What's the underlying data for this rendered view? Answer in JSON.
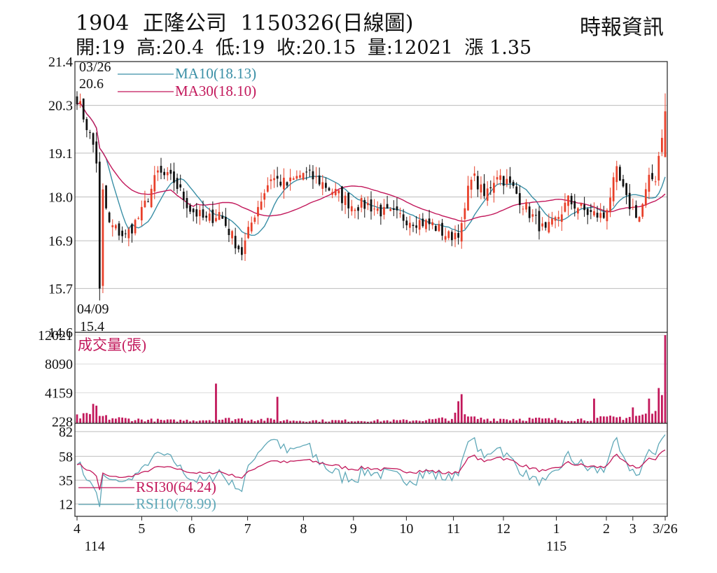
{
  "header": {
    "code": "1904",
    "name": "正隆公司",
    "date": "1150326(日線圖)",
    "source": "時報資訊",
    "open": "開:19",
    "high": "高:20.4",
    "low": "低:19",
    "close": "收:20.15",
    "volume": "量:12021",
    "change": "漲 1.35"
  },
  "chart_data": {
    "type": "candlestick",
    "price_panel": {
      "yticks": [
        "21.4",
        "20.3",
        "19.1",
        "18.0",
        "16.9",
        "15.7",
        "14.6"
      ],
      "ylim": [
        14.6,
        21.4
      ],
      "legend": [
        {
          "name": "MA10(18.13)",
          "color": "#3a8fa6"
        },
        {
          "name": "MA30(18.10)",
          "color": "#c2185b"
        }
      ],
      "annotations": {
        "high_date": "03/26",
        "high_value": "20.6",
        "low_date": "04/09",
        "low_value": "15.4"
      },
      "up_color": "#e8402a",
      "down_color": "#111111"
    },
    "volume_panel": {
      "label": "成交量(張)",
      "yticks": [
        "12021",
        "8090",
        "4159",
        "228"
      ],
      "ylim": [
        0,
        12021
      ],
      "color": "#c2185b"
    },
    "rsi_panel": {
      "yticks": [
        "82",
        "58",
        "35",
        "12"
      ],
      "ylim": [
        0,
        90
      ],
      "legend": [
        {
          "name": "RSI30(64.24)",
          "color": "#c2185b"
        },
        {
          "name": "RSI10(78.99)",
          "color": "#5fa8b8"
        }
      ]
    },
    "xticks": [
      {
        "label": "4",
        "pos": 0.0
      },
      {
        "label": "5",
        "pos": 0.11
      },
      {
        "label": "6",
        "pos": 0.195
      },
      {
        "label": "7",
        "pos": 0.29
      },
      {
        "label": "8",
        "pos": 0.385
      },
      {
        "label": "9",
        "pos": 0.47
      },
      {
        "label": "10",
        "pos": 0.56
      },
      {
        "label": "11",
        "pos": 0.64
      },
      {
        "label": "12",
        "pos": 0.725
      },
      {
        "label": "1",
        "pos": 0.815
      },
      {
        "label": "2",
        "pos": 0.9
      },
      {
        "label": "3",
        "pos": 0.945
      },
      {
        "label": "3/26",
        "pos": 1.0
      }
    ],
    "year_labels": [
      {
        "label": "114",
        "pos": 0.03
      },
      {
        "label": "115",
        "pos": 0.815
      }
    ],
    "anchors": [
      [
        0,
        20.5
      ],
      [
        5,
        19.3
      ],
      [
        10,
        17.3
      ],
      [
        15,
        17.0
      ],
      [
        20,
        17.6
      ],
      [
        25,
        18.6
      ],
      [
        30,
        18.4
      ],
      [
        35,
        17.7
      ],
      [
        40,
        17.4
      ],
      [
        44,
        17.6
      ],
      [
        48,
        17.0
      ],
      [
        51,
        16.6
      ],
      [
        55,
        17.6
      ],
      [
        60,
        18.5
      ],
      [
        65,
        18.3
      ],
      [
        70,
        18.6
      ],
      [
        75,
        18.4
      ],
      [
        80,
        18.1
      ],
      [
        85,
        17.8
      ],
      [
        90,
        17.8
      ],
      [
        95,
        17.6
      ],
      [
        100,
        17.5
      ],
      [
        105,
        17.4
      ],
      [
        110,
        17.3
      ],
      [
        115,
        17.0
      ],
      [
        119,
        17.2
      ],
      [
        122,
        18.6
      ],
      [
        126,
        18.0
      ],
      [
        130,
        18.6
      ],
      [
        135,
        18.2
      ],
      [
        140,
        17.6
      ],
      [
        145,
        17.1
      ],
      [
        148,
        17.4
      ],
      [
        152,
        17.9
      ],
      [
        158,
        17.6
      ],
      [
        163,
        17.5
      ],
      [
        167,
        18.6
      ],
      [
        170,
        17.9
      ],
      [
        174,
        17.5
      ],
      [
        177,
        18.4
      ],
      [
        179,
        18.5
      ],
      [
        182,
        20.15
      ]
    ],
    "volume_anchors": [
      [
        0,
        0.07
      ],
      [
        5,
        0.09
      ],
      [
        10,
        0.06
      ],
      [
        20,
        0.04
      ],
      [
        30,
        0.03
      ],
      [
        40,
        0.04
      ],
      [
        50,
        0.05
      ],
      [
        60,
        0.04
      ],
      [
        70,
        0.03
      ],
      [
        80,
        0.03
      ],
      [
        90,
        0.03
      ],
      [
        100,
        0.03
      ],
      [
        110,
        0.04
      ],
      [
        120,
        0.07
      ],
      [
        125,
        0.05
      ],
      [
        140,
        0.05
      ],
      [
        150,
        0.04
      ],
      [
        160,
        0.05
      ],
      [
        170,
        0.07
      ],
      [
        175,
        0.09
      ],
      [
        180,
        0.12
      ],
      [
        182,
        0.22
      ]
    ],
    "volume_spikes": [
      {
        "day": 5,
        "value": 0.22
      },
      {
        "day": 6,
        "value": 0.2
      },
      {
        "day": 43,
        "value": 0.45
      },
      {
        "day": 62,
        "value": 0.3
      },
      {
        "day": 117,
        "value": 0.12
      },
      {
        "day": 118,
        "value": 0.25
      },
      {
        "day": 119,
        "value": 0.33
      },
      {
        "day": 160,
        "value": 0.28
      },
      {
        "day": 172,
        "value": 0.18
      },
      {
        "day": 177,
        "value": 0.28
      },
      {
        "day": 180,
        "value": 0.4
      },
      {
        "day": 181,
        "value": 0.32
      },
      {
        "day": 182,
        "value": 1.0
      }
    ]
  }
}
